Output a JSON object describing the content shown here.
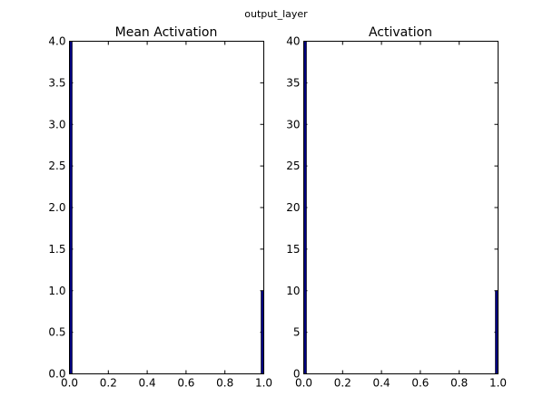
{
  "figure": {
    "suptitle": "output_layer"
  },
  "chart_data": [
    {
      "type": "bar",
      "title": "Mean Activation",
      "xlabel": "",
      "ylabel": "",
      "xlim": [
        0.0,
        1.0
      ],
      "ylim": [
        0.0,
        4.0
      ],
      "x_ticks": [
        "0.0",
        "0.2",
        "0.4",
        "0.6",
        "0.8",
        "1.0"
      ],
      "y_ticks": [
        "0.0",
        "0.5",
        "1.0",
        "1.5",
        "2.0",
        "2.5",
        "3.0",
        "3.5",
        "4.0"
      ],
      "x": [
        0.0,
        1.0
      ],
      "values": [
        4,
        1
      ],
      "bar_color": "#000080",
      "grid": false
    },
    {
      "type": "bar",
      "title": "Activation",
      "xlabel": "",
      "ylabel": "",
      "xlim": [
        0.0,
        1.0
      ],
      "ylim": [
        0,
        40
      ],
      "x_ticks": [
        "0.0",
        "0.2",
        "0.4",
        "0.6",
        "0.8",
        "1.0"
      ],
      "y_ticks": [
        "0",
        "5",
        "10",
        "15",
        "20",
        "25",
        "30",
        "35",
        "40"
      ],
      "x": [
        0.0,
        1.0
      ],
      "values": [
        40,
        10
      ],
      "bar_color": "#000080",
      "grid": false
    }
  ]
}
